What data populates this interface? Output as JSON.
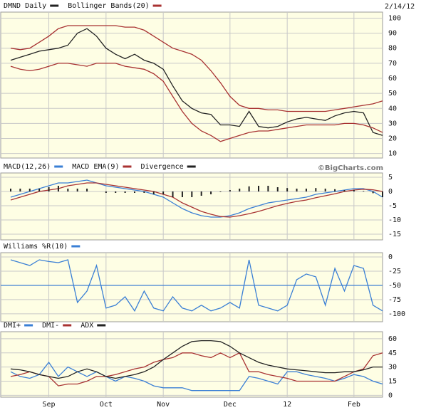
{
  "chart_data": [
    {
      "type": "line",
      "date": "2/14/12",
      "ylim": [
        7,
        104
      ],
      "yticks": [
        10,
        20,
        30,
        40,
        50,
        60,
        70,
        80,
        90,
        100
      ],
      "grid": true,
      "series": [
        {
          "name": "DMND Daily",
          "color": "#222222",
          "values": [
            72,
            74,
            76,
            78,
            79,
            80,
            82,
            90,
            93,
            88,
            80,
            76,
            73,
            76,
            72,
            70,
            66,
            55,
            45,
            40,
            37,
            36,
            29,
            29,
            28,
            38,
            28,
            27,
            28,
            31,
            33,
            34,
            33,
            32,
            35,
            37,
            38,
            37,
            24,
            22
          ]
        },
        {
          "name": "Bollinger Bands(20)",
          "color": "#a83232",
          "values": [
            80,
            79,
            80,
            84,
            88,
            93,
            95,
            95,
            95,
            95,
            95,
            95,
            94,
            94,
            92,
            88,
            84,
            80,
            78,
            76,
            72,
            65,
            57,
            48,
            42,
            40,
            40,
            39,
            39,
            38,
            38,
            38,
            38,
            38,
            39,
            40,
            41,
            42,
            43,
            45
          ],
          "lower": [
            68,
            66,
            65,
            66,
            68,
            70,
            70,
            69,
            68,
            70,
            70,
            70,
            68,
            67,
            66,
            63,
            58,
            48,
            38,
            30,
            25,
            22,
            18,
            20,
            22,
            24,
            25,
            25,
            26,
            27,
            28,
            29,
            29,
            29,
            29,
            30,
            30,
            29,
            27,
            24
          ]
        }
      ]
    },
    {
      "type": "line",
      "credit": "©BigCharts.com",
      "ylim": [
        -17,
        6.5
      ],
      "yticks": [
        5,
        0,
        -5,
        -10,
        -15
      ],
      "grid": true,
      "series": [
        {
          "name": "MACD(12,26)",
          "color": "#3a7fd5",
          "values": [
            -2,
            -1,
            0,
            1,
            2,
            3,
            3,
            3.5,
            4,
            3,
            2,
            1.5,
            1,
            0.5,
            0,
            -1,
            -2,
            -4,
            -6,
            -7.5,
            -8.5,
            -9,
            -9,
            -8.5,
            -7.5,
            -6,
            -5,
            -4,
            -3.5,
            -3,
            -2.5,
            -2,
            -1,
            -0.5,
            0,
            0.5,
            1,
            1,
            0,
            -2
          ]
        },
        {
          "name": "MACD EMA(9)",
          "color": "#a83232",
          "values": [
            -3,
            -2,
            -1,
            0,
            0.5,
            1,
            2,
            2.5,
            3,
            3,
            2.5,
            2,
            1.5,
            1,
            0.5,
            0,
            -1,
            -2,
            -4,
            -5.5,
            -7,
            -8,
            -8.8,
            -9,
            -8.5,
            -7.8,
            -7,
            -6,
            -5,
            -4.2,
            -3.5,
            -3,
            -2.2,
            -1.5,
            -0.8,
            0,
            0.5,
            0.8,
            0.6,
            0
          ]
        },
        {
          "name": "Divergence",
          "color": "#222222",
          "style": "bar",
          "values": [
            1,
            1,
            1,
            1,
            1.5,
            2,
            1,
            1,
            1,
            0,
            -0.5,
            -0.5,
            -0.5,
            -0.5,
            -0.5,
            -1,
            -1,
            -2,
            -2,
            -2,
            -1.5,
            -1,
            -0.2,
            0.5,
            1,
            1.8,
            2,
            2,
            1.5,
            1.2,
            1,
            1,
            1.2,
            1,
            0.8,
            0.5,
            0.5,
            0.2,
            -0.6,
            -2
          ]
        }
      ]
    },
    {
      "type": "line",
      "ylim": [
        -114,
        7.5
      ],
      "yticks": [
        0,
        -25,
        -50,
        -75,
        -100
      ],
      "grid": true,
      "hline": -50,
      "series": [
        {
          "name": "Williams %R(10)",
          "color": "#3a7fd5",
          "values": [
            -5,
            -10,
            -15,
            -5,
            -8,
            -10,
            -5,
            -80,
            -60,
            -15,
            -90,
            -85,
            -70,
            -95,
            -60,
            -90,
            -95,
            -70,
            -90,
            -95,
            -85,
            -95,
            -90,
            -80,
            -90,
            -5,
            -85,
            -90,
            -95,
            -85,
            -40,
            -30,
            -35,
            -85,
            -20,
            -60,
            -15,
            -20,
            -85,
            -95
          ]
        }
      ]
    },
    {
      "type": "line",
      "ylim": [
        -2,
        67.5
      ],
      "yticks": [
        0,
        15,
        30,
        45,
        60
      ],
      "grid": true,
      "categories": [
        null,
        null,
        null,
        null,
        "Sep",
        null,
        null,
        null,
        null,
        null,
        "Oct",
        null,
        null,
        null,
        null,
        null,
        "Nov",
        null,
        null,
        null,
        null,
        null,
        null,
        "Dec",
        null,
        null,
        null,
        null,
        null,
        "12",
        null,
        null,
        null,
        null,
        null,
        null,
        "Feb",
        null,
        null,
        null
      ],
      "series": [
        {
          "name": "DMI+",
          "color": "#3a7fd5",
          "values": [
            25,
            20,
            18,
            22,
            35,
            20,
            30,
            25,
            20,
            25,
            20,
            15,
            20,
            18,
            15,
            10,
            8,
            8,
            8,
            5,
            5,
            5,
            5,
            5,
            5,
            20,
            18,
            15,
            12,
            25,
            25,
            22,
            20,
            18,
            15,
            18,
            22,
            20,
            15,
            12
          ]
        },
        {
          "name": "DMI-",
          "color": "#a83232",
          "values": [
            20,
            22,
            25,
            22,
            20,
            10,
            12,
            12,
            15,
            20,
            20,
            22,
            25,
            28,
            30,
            35,
            38,
            40,
            45,
            45,
            42,
            40,
            45,
            40,
            45,
            25,
            25,
            22,
            20,
            18,
            15,
            15,
            15,
            15,
            15,
            20,
            25,
            28,
            42,
            45
          ]
        },
        {
          "name": "ADX",
          "color": "#222222",
          "values": [
            28,
            27,
            25,
            22,
            20,
            18,
            20,
            25,
            28,
            25,
            20,
            18,
            20,
            22,
            25,
            30,
            38,
            45,
            52,
            57,
            58,
            58,
            57,
            52,
            45,
            40,
            35,
            32,
            30,
            28,
            27,
            26,
            25,
            24,
            24,
            25,
            25,
            27,
            30,
            30
          ]
        }
      ]
    }
  ]
}
